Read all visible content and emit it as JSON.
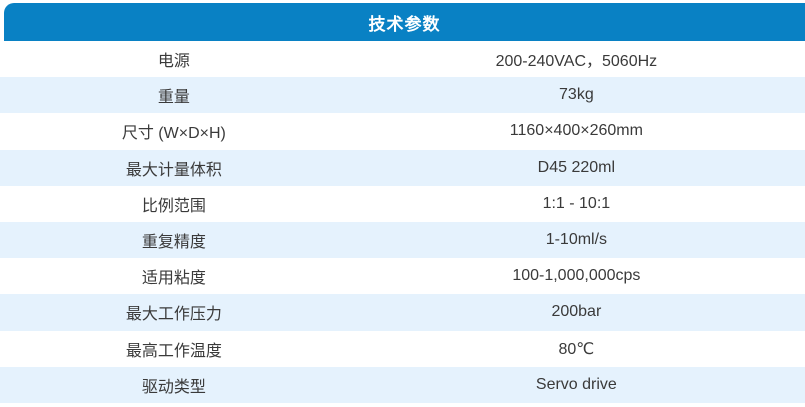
{
  "header": {
    "title": "技术参数"
  },
  "colors": {
    "header_bg": "#0981c4",
    "header_text": "#ffffff",
    "row_bg": "#ffffff",
    "row_alt_bg": "#e5f2fd",
    "text": "#3a3a3a"
  },
  "table": {
    "rows": [
      {
        "label": "电源",
        "value": "200-240VAC，5060Hz"
      },
      {
        "label": "重量",
        "value": "73kg"
      },
      {
        "label": "尺寸 (W×D×H)",
        "value": "1160×400×260mm"
      },
      {
        "label": "最大计量体积",
        "value": "D45 220ml"
      },
      {
        "label": "比例范围",
        "value": "1:1 - 10:1"
      },
      {
        "label": "重复精度",
        "value": "1-10ml/s"
      },
      {
        "label": "适用粘度",
        "value": "100-1,000,000cps"
      },
      {
        "label": "最大工作压力",
        "value": "200bar"
      },
      {
        "label": "最高工作温度",
        "value": "80℃"
      },
      {
        "label": "驱动类型",
        "value": "Servo drive"
      }
    ]
  }
}
